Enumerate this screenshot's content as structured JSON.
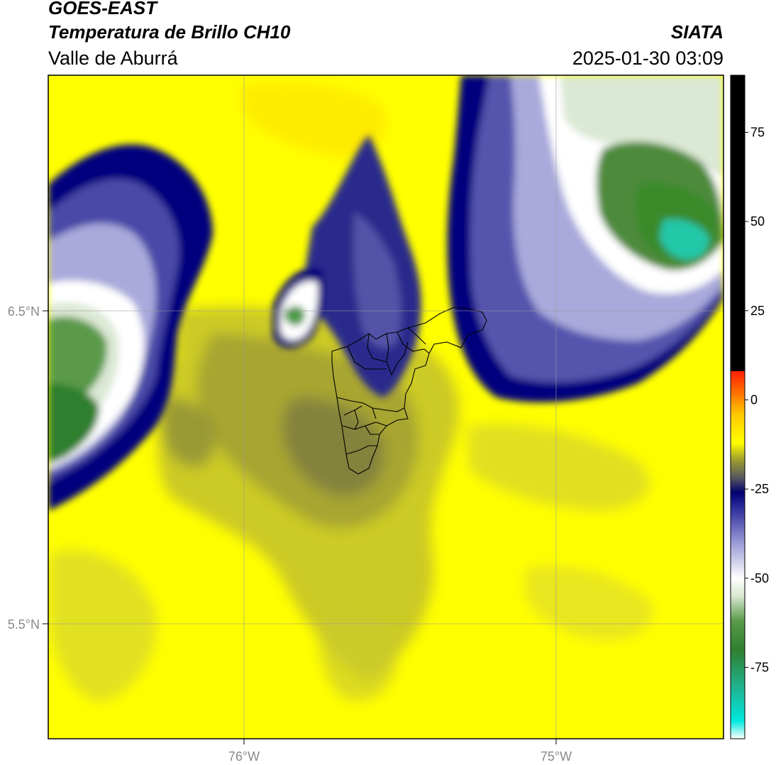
{
  "header": {
    "satellite": "GOES-EAST",
    "product": "Temperatura de Brillo CH10",
    "region": "Valle de Aburrá",
    "agency": "SIATA",
    "datetime": "2025-01-30 03:09"
  },
  "map": {
    "lat_ticks": [
      {
        "value": 6.5,
        "label": "6.5°N"
      },
      {
        "value": 5.5,
        "label": "5.5°N"
      }
    ],
    "lon_ticks": [
      {
        "value": -76.0,
        "label": "76°W"
      },
      {
        "value": -75.0,
        "label": "75°W"
      }
    ],
    "gridlines": true,
    "colors": {
      "warm": "#ffff00",
      "olive": "#b4b41e",
      "dark_olive": "#6e6e3a",
      "navy": "#00007e",
      "lavender": "#a9a9dc",
      "white": "#ffffff",
      "green": "#3a8a2a",
      "teal": "#22c8a8",
      "boundary": "#000000"
    }
  },
  "colorbar": {
    "ticks": [
      "75",
      "50",
      "25",
      "0",
      "-25",
      "-50",
      "-75"
    ],
    "tick_values": [
      75,
      50,
      25,
      0,
      -25,
      -50,
      -75
    ],
    "range": [
      -95,
      91
    ],
    "stops": [
      {
        "value": -95,
        "color": "#ffffff"
      },
      {
        "value": -90,
        "color": "#00e8e0"
      },
      {
        "value": -80,
        "color": "#22b08a"
      },
      {
        "value": -70,
        "color": "#2f7f2f"
      },
      {
        "value": -62,
        "color": "#5a9a4a"
      },
      {
        "value": -55,
        "color": "#d8e8d0"
      },
      {
        "value": -50,
        "color": "#ffffff"
      },
      {
        "value": -40,
        "color": "#9a9ad6"
      },
      {
        "value": -30,
        "color": "#2a2a9a"
      },
      {
        "value": -26,
        "color": "#000070"
      },
      {
        "value": -22,
        "color": "#555560"
      },
      {
        "value": -17,
        "color": "#9a9a30"
      },
      {
        "value": -12,
        "color": "#ffff00"
      },
      {
        "value": -4,
        "color": "#ffc800"
      },
      {
        "value": 2,
        "color": "#ff7000"
      },
      {
        "value": 8,
        "color": "#ff2000"
      },
      {
        "value": 8.01,
        "color": "#000000"
      },
      {
        "value": 91,
        "color": "#000000"
      }
    ]
  }
}
